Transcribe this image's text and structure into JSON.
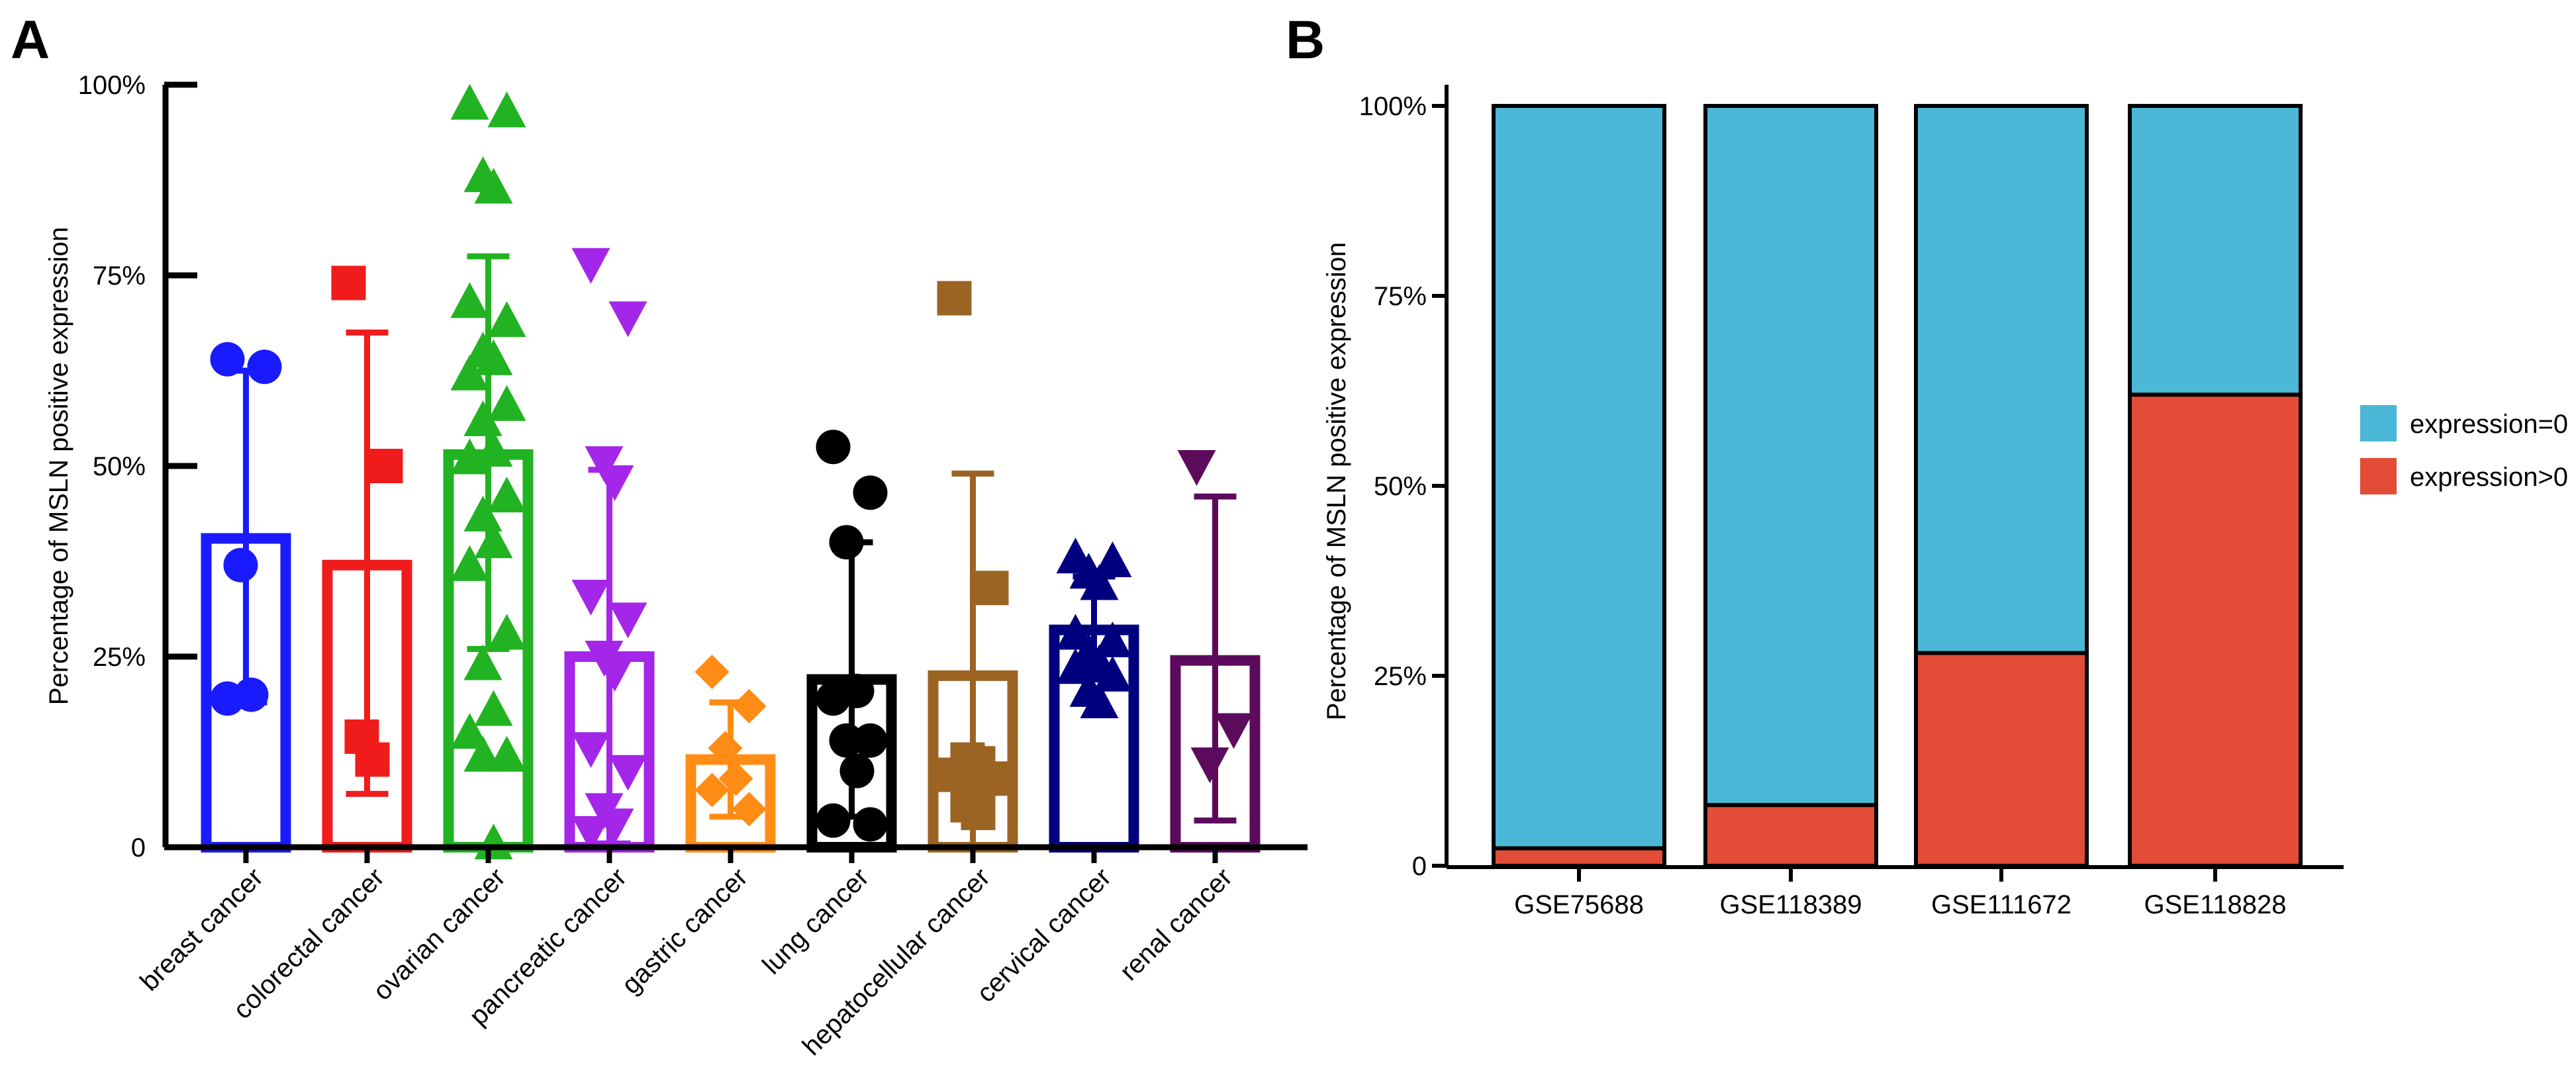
{
  "chart_data": [
    {
      "panel": "A",
      "type": "bar",
      "title": "",
      "xlabel": "",
      "ylabel": "Percentage of MSLN positive expression",
      "ylim": [
        0,
        100
      ],
      "yticks": [
        "0",
        "25%",
        "50%",
        "75%",
        "100%"
      ],
      "yticks_values": [
        0,
        25,
        50,
        75,
        100
      ],
      "categories": [
        "breast cancer",
        "colorectal cancer",
        "ovarian cancer",
        "pancreatic cancer",
        "gastric cancer",
        "lung cancer",
        "hepatocellular cancer",
        "cervical cancer",
        "renal cancer"
      ],
      "values": [
        40.5,
        37,
        51.5,
        25,
        11.5,
        22,
        22.5,
        28.5,
        24.5
      ],
      "error_high": [
        62.5,
        67.5,
        77.5,
        49.5,
        19,
        40,
        49,
        35.5,
        46
      ],
      "error_low": [
        19,
        7,
        26,
        0.5,
        4,
        4,
        0,
        22,
        3.5
      ],
      "colors": [
        "#1a1aff",
        "#f01c1c",
        "#21b321",
        "#a426e8",
        "#ff8c14",
        "#000000",
        "#9b6423",
        "#00007f",
        "#5c0b5c"
      ],
      "markers": [
        "circle",
        "square",
        "triangle-up",
        "triangle-down",
        "diamond",
        "circle",
        "square",
        "triangle-up",
        "triangle-down"
      ],
      "points": [
        [
          64,
          63,
          37,
          20,
          19.5
        ],
        [
          74,
          50,
          14.5,
          11.5
        ],
        [
          97.5,
          96.5,
          88,
          86.5,
          71.5,
          69,
          65,
          64,
          62,
          58,
          56,
          52,
          51,
          46,
          43.5,
          40,
          37,
          28,
          24,
          18,
          15,
          12,
          12,
          0.5
        ],
        [
          76.5,
          69.5,
          50.5,
          48,
          33,
          30,
          25,
          23,
          13,
          10,
          5,
          3,
          2
        ],
        [
          23,
          18.5,
          13,
          9,
          7.5,
          5
        ],
        [
          52.5,
          46.5,
          40,
          20.5,
          19.5,
          14,
          14,
          10,
          3.5,
          3
        ],
        [
          72,
          34,
          11.5,
          11,
          9.5,
          9,
          5.5,
          4.5
        ],
        [
          38,
          37.5,
          36,
          34.5,
          28,
          27,
          25.5,
          24,
          23.5,
          22.5,
          20.5,
          19
        ],
        [
          50,
          15.5,
          11
        ]
      ]
    },
    {
      "panel": "B",
      "type": "bar",
      "stacked": true,
      "title": "",
      "xlabel": "",
      "ylabel": "Percentage of MSLN positive expression",
      "ylim": [
        0,
        100
      ],
      "yticks": [
        "0",
        "25%",
        "50%",
        "75%",
        "100%"
      ],
      "yticks_values": [
        0,
        25,
        50,
        75,
        100
      ],
      "categories": [
        "GSE75688",
        "GSE118389",
        "GSE111672",
        "GSE118828"
      ],
      "series": [
        {
          "name": "expression>0",
          "color": "#e34c37",
          "values": [
            2.3,
            8,
            28,
            62
          ]
        },
        {
          "name": "expression=0",
          "color": "#4ab8d6",
          "values": [
            97.7,
            92,
            72,
            38
          ]
        }
      ],
      "legend": [
        "expression=0",
        "expression>0"
      ],
      "legend_position": "right"
    }
  ]
}
